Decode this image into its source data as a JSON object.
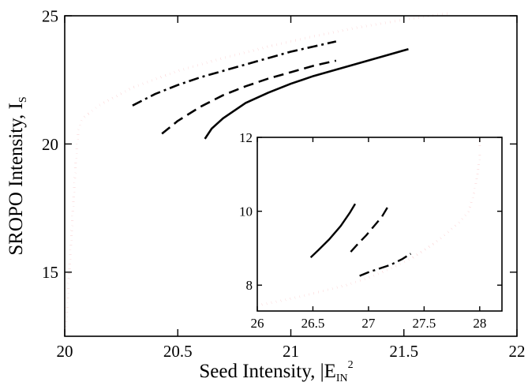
{
  "chart_data": [
    {
      "id": "main",
      "type": "line",
      "xlabel_text": "Seed Intensity, |E",
      "xlabel_sub": "IN",
      "xlabel_sup": "2",
      "ylabel_text": "SROPO Intensity, I",
      "ylabel_sub": "S",
      "xlim": [
        20,
        22
      ],
      "ylim": [
        12.5,
        25
      ],
      "xticks": [
        20,
        20.5,
        21,
        21.5,
        22
      ],
      "xtick_labels": [
        "20",
        "20.5",
        "21",
        "21.5",
        "22"
      ],
      "yticks": [
        15,
        20,
        25
      ],
      "ytick_labels": [
        "15",
        "20",
        "25"
      ],
      "grid": false,
      "series": [
        {
          "style": "dotted",
          "color": "#e8262a",
          "x": [
            20.0,
            20.01,
            20.02,
            20.03,
            20.04,
            20.05,
            20.06,
            20.08,
            20.15,
            20.3,
            20.5,
            20.7,
            20.9,
            21.1,
            21.3,
            21.5,
            21.7
          ],
          "y": [
            12.5,
            13.5,
            15.0,
            16.5,
            18.0,
            19.5,
            20.5,
            21.0,
            21.5,
            22.2,
            22.85,
            23.35,
            23.8,
            24.2,
            24.55,
            24.85,
            25.1
          ]
        },
        {
          "style": "dashdot",
          "color": "#000000",
          "x": [
            20.3,
            20.4,
            20.5,
            20.6,
            20.7,
            20.8,
            20.9,
            21.0,
            21.1,
            21.2
          ],
          "y": [
            21.5,
            21.95,
            22.3,
            22.6,
            22.85,
            23.1,
            23.35,
            23.6,
            23.8,
            24.0
          ]
        },
        {
          "style": "dashed",
          "color": "#000000",
          "x": [
            20.43,
            20.5,
            20.6,
            20.7,
            20.8,
            20.9,
            21.0,
            21.1,
            21.2
          ],
          "y": [
            20.4,
            20.9,
            21.45,
            21.9,
            22.25,
            22.55,
            22.8,
            23.05,
            23.25
          ]
        },
        {
          "style": "solid",
          "color": "#000000",
          "x": [
            20.62,
            20.65,
            20.7,
            20.8,
            20.9,
            21.0,
            21.1,
            21.2,
            21.3,
            21.4,
            21.52
          ],
          "y": [
            20.2,
            20.6,
            21.0,
            21.6,
            22.0,
            22.35,
            22.65,
            22.9,
            23.15,
            23.4,
            23.7
          ]
        }
      ]
    },
    {
      "id": "inset",
      "type": "line",
      "xlim": [
        26,
        28.2
      ],
      "ylim": [
        7.3,
        12
      ],
      "xticks": [
        26,
        26.5,
        27,
        27.5,
        28
      ],
      "xtick_labels": [
        "26",
        "26.5",
        "27",
        "27.5",
        "28"
      ],
      "yticks": [
        8,
        10,
        12
      ],
      "ytick_labels": [
        "8",
        "10",
        "12"
      ],
      "grid": false,
      "series": [
        {
          "style": "dotted",
          "color": "#e8262a",
          "x": [
            26.0,
            26.2,
            26.4,
            26.6,
            26.8,
            27.0,
            27.2,
            27.4,
            27.6,
            27.8,
            27.9,
            27.95,
            27.98,
            28.0,
            28.0
          ],
          "y": [
            7.45,
            7.57,
            7.7,
            7.85,
            8.0,
            8.2,
            8.45,
            8.75,
            9.15,
            9.65,
            10.0,
            10.5,
            11.0,
            11.5,
            12.0
          ]
        },
        {
          "style": "solid",
          "color": "#000000",
          "x": [
            26.48,
            26.55,
            26.65,
            26.75,
            26.83,
            26.88
          ],
          "y": [
            8.75,
            8.95,
            9.25,
            9.6,
            9.95,
            10.2
          ]
        },
        {
          "style": "dashed",
          "color": "#000000",
          "x": [
            26.84,
            26.9,
            26.98,
            27.05,
            27.12,
            27.18
          ],
          "y": [
            8.9,
            9.1,
            9.35,
            9.6,
            9.85,
            10.15
          ]
        },
        {
          "style": "dashdot",
          "color": "#000000",
          "x": [
            26.92,
            27.0,
            27.1,
            27.2,
            27.3,
            27.38
          ],
          "y": [
            8.25,
            8.35,
            8.45,
            8.55,
            8.7,
            8.85
          ]
        }
      ]
    }
  ]
}
